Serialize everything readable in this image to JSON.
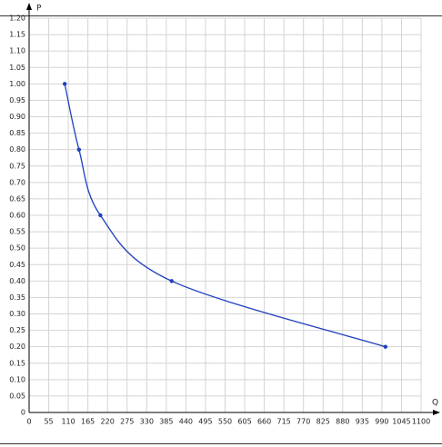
{
  "chart_data": {
    "type": "line",
    "x_label": "Q",
    "y_label": "P",
    "x": [
      100,
      140,
      200,
      400,
      1000
    ],
    "values": [
      1.0,
      0.8,
      0.6,
      0.4,
      0.2
    ],
    "color": "#1f3fbf",
    "xlim": [
      0,
      1100
    ],
    "ylim": [
      0,
      1.2
    ],
    "xticks": [
      0,
      55,
      110,
      165,
      220,
      275,
      330,
      385,
      440,
      495,
      550,
      605,
      660,
      715,
      770,
      825,
      880,
      935,
      990,
      1045,
      1100
    ],
    "yticks": [
      0,
      0.05,
      {
        "value": 0.1,
        "label": "0.10"
      },
      0.15,
      {
        "value": 0.2,
        "label": "0.20"
      },
      0.25,
      {
        "value": 0.3,
        "label": "0.30"
      },
      0.35,
      {
        "value": 0.4,
        "label": "0.40"
      },
      0.45,
      {
        "value": 0.5,
        "label": "0.50"
      },
      0.55,
      {
        "value": 0.6,
        "label": "0.60"
      },
      0.65,
      {
        "value": 0.7,
        "label": "0.70"
      },
      0.75,
      {
        "value": 0.8,
        "label": "0.80"
      },
      0.85,
      {
        "value": 0.9,
        "label": "0.90"
      },
      0.95,
      {
        "value": 1,
        "label": "1.00"
      },
      1.05,
      {
        "value": 1.1,
        "label": "1.10"
      },
      1.15,
      {
        "value": 1.2,
        "label": "1.20"
      }
    ],
    "grid": true
  }
}
